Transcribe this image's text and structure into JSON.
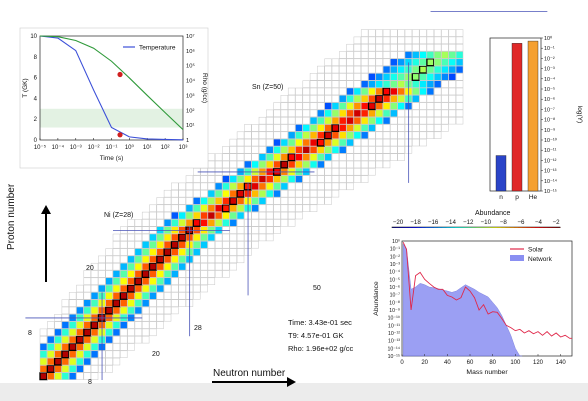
{
  "chart_data": [
    {
      "type": "line",
      "title": "",
      "xlabel": "Time (s)",
      "ylabel": "T (GK)",
      "ylabel_right": "Rho (g/cc)",
      "xscale": "log",
      "xlim": [
        1e-05,
        1000
      ],
      "ylim": [
        0,
        10
      ],
      "y_right_scale": "log",
      "y_right_lim": [
        1,
        10000000
      ],
      "legend": [
        "Temperature"
      ],
      "legend_position": "top-right",
      "x_ticks": [
        "10⁻⁵",
        "10⁻⁴",
        "10⁻³",
        "10⁻²",
        "10⁻¹",
        "10⁰",
        "10¹",
        "10²",
        "10³"
      ],
      "y_ticks": [
        "0",
        "2",
        "4",
        "6",
        "8",
        "10"
      ],
      "y_right_ticks": [
        "1",
        "10¹",
        "10²",
        "10³",
        "10⁴",
        "10⁵",
        "10⁶",
        "10⁷"
      ],
      "series": [
        {
          "name": "Temperature",
          "color": "#3b4fd8",
          "x": [
            1e-05,
            0.0001,
            0.001,
            0.01,
            0.1,
            1,
            10,
            100,
            1000
          ],
          "y": [
            10,
            9.8,
            8.6,
            4.8,
            1.2,
            0.3,
            0.1,
            0.05,
            0.02
          ]
        },
        {
          "name": "",
          "color": "#2f9a3a",
          "x": [
            1e-05,
            0.0001,
            0.001,
            0.01,
            0.1,
            1,
            10,
            100,
            1000
          ],
          "y_right": [
            10000000,
            9000000,
            5000000,
            1500000,
            200000,
            15000,
            1000,
            70,
            5
          ]
        }
      ],
      "markers": [
        {
          "x": 0.3,
          "y": 6.3
        },
        {
          "x": 0.3,
          "y": 0.5
        }
      ],
      "current_band": [
        1.2,
        3.0
      ]
    },
    {
      "type": "bar",
      "title": "",
      "ylabel": "log(Y)",
      "yscale": "log",
      "ylim": [
        1e-15,
        1
      ],
      "categories": [
        "n",
        "p",
        "He"
      ],
      "values": [
        3e-12,
        0.3,
        0.5
      ],
      "colors": [
        "#2a44c8",
        "#e02828",
        "#f5a030"
      ],
      "y_ticks": [
        "10⁰",
        "10⁻¹",
        "10⁻²",
        "10⁻³",
        "10⁻⁴",
        "10⁻⁵",
        "10⁻⁶",
        "10⁻⁷",
        "10⁻⁸",
        "10⁻⁹",
        "10⁻¹⁰",
        "10⁻¹¹",
        "10⁻¹²",
        "10⁻¹³",
        "10⁻¹⁴",
        "10⁻¹⁵"
      ]
    },
    {
      "type": "heatmap",
      "title": "",
      "xlabel": "Neutron number",
      "ylabel": "Proton number",
      "colorbar_label": "Abundance",
      "colorbar_ticks": [
        "−20",
        "−18",
        "−16",
        "−14",
        "−12",
        "−10",
        "−8",
        "−6",
        "−4",
        "−2"
      ],
      "colorbar_range": [
        -20,
        -2
      ],
      "annotations": [
        "Sn (Z=50)",
        "Ni (Z=28)"
      ],
      "neutron_magic_labels": [
        "8",
        "20",
        "28",
        "50"
      ],
      "proton_magic_labels": [
        "8",
        "20"
      ],
      "info_text": {
        "time": "Time: 3.43e-01 sec",
        "t9": "T9:  4.57e-01 GK",
        "rho": "Rho:  1.96e+02 g/cc"
      }
    },
    {
      "type": "area",
      "title": "",
      "xlabel": "Mass number",
      "ylabel": "Abundance",
      "yscale": "log",
      "xlim": [
        0,
        150
      ],
      "ylim": [
        1e-15,
        1
      ],
      "x_ticks": [
        "0",
        "20",
        "40",
        "60",
        "80",
        "100",
        "120",
        "140"
      ],
      "y_ticks": [
        "10⁰",
        "10⁻¹",
        "10⁻²",
        "10⁻³",
        "10⁻⁴",
        "10⁻⁵",
        "10⁻⁶",
        "10⁻⁷",
        "10⁻⁸",
        "10⁻⁹",
        "10⁻¹⁰",
        "10⁻¹¹",
        "10⁻¹²",
        "10⁻¹³",
        "10⁻¹⁴",
        "10⁻¹⁵"
      ],
      "legend": [
        "Solar",
        "Network"
      ],
      "legend_position": "top-right",
      "series": [
        {
          "name": "Solar",
          "color": "#e0284a",
          "x": [
            1,
            4,
            8,
            12,
            16,
            20,
            24,
            28,
            32,
            36,
            40,
            44,
            48,
            52,
            56,
            60,
            64,
            68,
            72,
            76,
            80,
            84,
            88,
            92,
            96,
            100,
            104,
            108,
            112,
            116,
            120,
            124,
            128,
            132,
            136,
            140,
            144,
            148,
            150
          ],
          "y": [
            0.7,
            0.08,
            1e-09,
            3e-05,
            8e-05,
            1e-05,
            3e-06,
            1e-06,
            5e-07,
            5e-07,
            8e-08,
            5e-08,
            2e-08,
            4e-08,
            1e-06,
            3e-07,
            4e-08,
            1e-09,
            5e-09,
            3e-10,
            6e-10,
            5e-10,
            8e-11,
            1e-11,
            5e-12,
            2e-12,
            3e-12,
            1e-12,
            2e-12,
            8e-13,
            1.5e-12,
            5e-13,
            1.5e-12,
            4e-13,
            1e-12,
            3e-13,
            5e-13,
            2e-13,
            2e-13
          ]
        },
        {
          "name": "Network",
          "color": "#8a8ff2",
          "x": [
            1,
            4,
            8,
            12,
            16,
            20,
            24,
            28,
            32,
            36,
            40,
            44,
            48,
            52,
            56,
            60,
            64,
            68,
            72,
            76,
            80,
            84,
            88,
            92,
            96,
            100,
            104,
            106
          ],
          "y": [
            0.4,
            0.1,
            5e-07,
            1e-06,
            3e-06,
            2e-06,
            1e-06,
            8e-07,
            6e-07,
            4e-07,
            3e-07,
            2e-07,
            3e-07,
            8e-07,
            2e-06,
            1e-06,
            5e-07,
            2e-07,
            1e-07,
            5e-08,
            1e-08,
            2e-09,
            2e-10,
            1e-11,
            5e-13,
            1e-14,
            1e-15,
            1e-15
          ]
        }
      ]
    }
  ]
}
